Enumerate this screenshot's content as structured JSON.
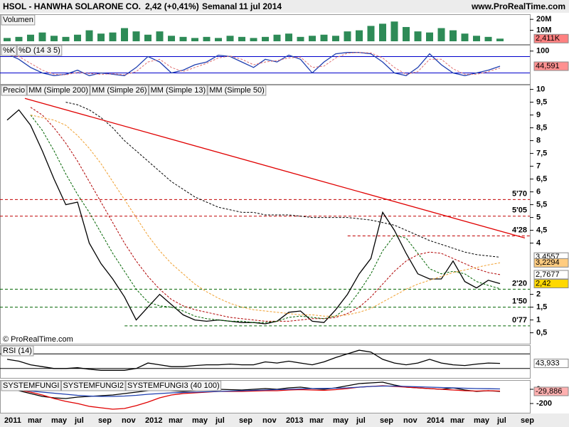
{
  "header": {
    "symbol": "HSOL - HANWHA SOLARONE CO.",
    "quote": "2,42 (+0,41%)",
    "period": "Semanal",
    "date": "11 jul 2014",
    "site": "www.ProRealTime.com"
  },
  "chart_data": [
    {
      "type": "bar",
      "title": "Volumen",
      "color": "#2e8b57",
      "ylim": [
        0,
        24000000
      ],
      "yticks": [
        {
          "value": 20000000,
          "label": "20M"
        },
        {
          "value": 10000000,
          "label": "10M"
        }
      ],
      "values": [
        3000000,
        4000000,
        6000000,
        8000000,
        5000000,
        4000000,
        6000000,
        10000000,
        7000000,
        8000000,
        12000000,
        9000000,
        6000000,
        9000000,
        5000000,
        4000000,
        3000000,
        4000000,
        3000000,
        5000000,
        4000000,
        3000000,
        4000000,
        6000000,
        7000000,
        4000000,
        5000000,
        6000000,
        5000000,
        9000000,
        10000000,
        14000000,
        16000000,
        18000000,
        13000000,
        9000000,
        8000000,
        12000000,
        10000000,
        7000000,
        5000000,
        4000000,
        2411000,
        null,
        null
      ],
      "markers": [
        {
          "value": 2411000,
          "label": "2,411K",
          "color": "#ff8080"
        }
      ]
    },
    {
      "type": "line",
      "ylim": [
        -10,
        115
      ],
      "yticks": [
        100
      ],
      "levels": [
        80,
        20
      ],
      "level_color": "#0000cc",
      "series": [
        {
          "name": "%K",
          "color": "#1f3fb0",
          "values": [
            90,
            70,
            40,
            20,
            10,
            15,
            30,
            10,
            20,
            15,
            10,
            40,
            80,
            60,
            20,
            30,
            50,
            60,
            85,
            80,
            60,
            40,
            70,
            60,
            85,
            70,
            20,
            60,
            90,
            95,
            95,
            90,
            60,
            20,
            10,
            40,
            90,
            50,
            20,
            10,
            20,
            30,
            44.591,
            null,
            null
          ]
        },
        {
          "name": "%D (14 3 5)",
          "color": "#e07070",
          "dashed": true,
          "values": [
            85,
            80,
            55,
            30,
            15,
            13,
            22,
            18,
            15,
            17,
            13,
            25,
            60,
            70,
            40,
            25,
            40,
            55,
            75,
            82,
            70,
            50,
            60,
            65,
            75,
            78,
            40,
            45,
            75,
            92,
            95,
            93,
            75,
            40,
            15,
            25,
            70,
            70,
            35,
            15,
            15,
            25,
            38,
            null,
            null
          ]
        }
      ],
      "markers": [
        {
          "value": 44.591,
          "label": "44,591",
          "color": "#ff9090"
        }
      ]
    },
    {
      "type": "line",
      "ylim": [
        0.1,
        10.1
      ],
      "credit": "© ProRealTime.com",
      "yticks": [
        10,
        {
          "value": 9.5,
          "label": "9,5"
        },
        9,
        {
          "value": 8.5,
          "label": "8,5"
        },
        8,
        {
          "value": 7.5,
          "label": "7,5"
        },
        7,
        {
          "value": 6.5,
          "label": "6,5"
        },
        6,
        {
          "value": 5.5,
          "label": "5,5"
        },
        5,
        {
          "value": 4.5,
          "label": "4,5"
        },
        4,
        2,
        {
          "value": 1.5,
          "label": "1,5"
        },
        1,
        {
          "value": 0.5,
          "label": "0,5"
        }
      ],
      "series": [
        {
          "name": "Precio",
          "color": "#000000",
          "values": [
            8.8,
            9.2,
            8.6,
            7.6,
            6.5,
            5.5,
            5.6,
            4.0,
            3.2,
            2.6,
            1.9,
            1.0,
            1.5,
            2.0,
            1.6,
            1.2,
            1.0,
            0.95,
            1.0,
            0.95,
            0.9,
            0.9,
            0.85,
            0.95,
            1.3,
            1.35,
            0.95,
            0.9,
            1.4,
            2.0,
            2.8,
            3.4,
            5.2,
            4.5,
            3.6,
            2.8,
            2.6,
            2.6,
            3.3,
            2.5,
            2.25,
            2.55,
            2.42,
            null,
            null
          ]
        },
        {
          "name": "MM (Simple 200)",
          "color": "#000000",
          "dashed": true,
          "values": [
            null,
            null,
            null,
            null,
            null,
            9.5,
            9.4,
            9.2,
            8.9,
            8.5,
            8.0,
            7.6,
            7.2,
            6.8,
            6.4,
            6.1,
            5.8,
            5.6,
            5.4,
            5.3,
            5.2,
            5.2,
            5.1,
            5.1,
            5.1,
            5.05,
            5.0,
            5.0,
            5.0,
            5.0,
            4.95,
            4.9,
            4.8,
            4.7,
            4.5,
            4.3,
            4.1,
            3.95,
            3.8,
            3.65,
            3.55,
            3.5,
            3.45,
            null,
            null
          ]
        },
        {
          "name": "MM (Simple 26)",
          "color": "#b00000",
          "dashed": true,
          "values": [
            null,
            null,
            9.3,
            9.0,
            8.5,
            7.9,
            7.2,
            6.4,
            5.6,
            4.8,
            4.0,
            3.3,
            2.7,
            2.2,
            1.8,
            1.55,
            1.4,
            1.3,
            1.2,
            1.1,
            1.05,
            1.0,
            0.95,
            0.95,
            0.95,
            1.0,
            1.05,
            1.05,
            1.1,
            1.25,
            1.5,
            1.9,
            2.4,
            2.9,
            3.3,
            3.55,
            3.65,
            3.6,
            3.4,
            3.2,
            3.0,
            2.85,
            2.77,
            null,
            null
          ]
        },
        {
          "name": "MM (Simple 13)",
          "color": "#006400",
          "dashed": true,
          "values": [
            null,
            null,
            9.0,
            8.4,
            7.6,
            6.7,
            5.9,
            5.2,
            4.4,
            3.6,
            2.9,
            2.2,
            1.7,
            1.55,
            1.5,
            1.35,
            1.15,
            1.05,
            1.0,
            0.95,
            0.95,
            0.9,
            0.9,
            0.95,
            1.1,
            1.15,
            1.1,
            1.05,
            1.15,
            1.5,
            2.1,
            2.8,
            3.7,
            4.3,
            4.2,
            3.6,
            3.0,
            2.8,
            2.9,
            2.8,
            2.5,
            2.35,
            2.22,
            null,
            null
          ]
        },
        {
          "name": "MM (Simple 50)",
          "color": "#f0a030",
          "dashed": true,
          "values": [
            null,
            null,
            9.0,
            8.9,
            8.8,
            8.6,
            8.2,
            7.7,
            7.1,
            6.4,
            5.7,
            5.0,
            4.3,
            3.7,
            3.2,
            2.8,
            2.4,
            2.1,
            1.85,
            1.65,
            1.5,
            1.4,
            1.35,
            1.3,
            1.25,
            1.2,
            1.2,
            1.15,
            1.15,
            1.2,
            1.3,
            1.45,
            1.7,
            1.95,
            2.2,
            2.4,
            2.55,
            2.7,
            2.85,
            2.95,
            3.05,
            3.15,
            3.23,
            null,
            null
          ]
        }
      ],
      "trendline": {
        "color": "#e00000",
        "x": [
          2,
          44.6
        ],
        "values": [
          9.65,
          4.2
        ]
      },
      "levels": [
        {
          "value": 5.7,
          "label": "5'70",
          "color": "#c00000"
        },
        {
          "value": 5.05,
          "label": "5'05",
          "color": "#c00000"
        },
        {
          "value": 4.28,
          "label": "4'28",
          "color": "#c00000",
          "x0": 29.5
        },
        {
          "value": 2.2,
          "label": "2'20",
          "color": "#006400"
        },
        {
          "value": 1.5,
          "label": "1'50",
          "color": "#006400"
        },
        {
          "value": 0.77,
          "label": "0'77",
          "color": "#006400",
          "x0": 10.5
        }
      ],
      "markers": [
        {
          "value": 3.4557,
          "label": "3,4557",
          "color": "#ffffff"
        },
        {
          "value": 3.2294,
          "label": "3,2294",
          "color": "#ffcc80"
        },
        {
          "value": 2.7677,
          "label": "2,7677",
          "color": "#ffffff"
        },
        {
          "value": 2.42,
          "label": "2,42",
          "color": "#ffd800"
        }
      ]
    },
    {
      "type": "line",
      "title": "RSI (14)",
      "ylim": [
        10,
        90
      ],
      "yticks": [],
      "levels": [
        70,
        30
      ],
      "level_color": "#000000",
      "series": [
        {
          "name": "RSI",
          "color": "#000000",
          "values": [
            55,
            50,
            40,
            35,
            30,
            30,
            32,
            28,
            25,
            25,
            25,
            30,
            45,
            40,
            35,
            35,
            38,
            40,
            40,
            42,
            40,
            40,
            48,
            45,
            50,
            45,
            40,
            48,
            60,
            70,
            80,
            75,
            55,
            45,
            40,
            45,
            55,
            45,
            40,
            38,
            42,
            45,
            43.933,
            null,
            null
          ]
        }
      ],
      "markers": [
        {
          "value": 43.933,
          "label": "43,933",
          "color": "#ffffff"
        }
      ]
    },
    {
      "type": "line",
      "ylim": [
        -310,
        100
      ],
      "yticks": [
        0,
        -200
      ],
      "series": [
        {
          "name": "SYSTEMFUNGI",
          "color": "#000000",
          "values": [
            0,
            -20,
            -60,
            -100,
            -120,
            -130,
            -110,
            -100,
            -90,
            -80,
            -60,
            -40,
            -20,
            -10,
            -20,
            -30,
            -20,
            -10,
            0,
            -5,
            -10,
            0,
            10,
            0,
            20,
            30,
            10,
            0,
            20,
            50,
            80,
            90,
            100,
            60,
            30,
            20,
            10,
            0,
            20,
            -10,
            -30,
            -20,
            -29.886,
            null,
            null
          ]
        },
        {
          "name": "SYSTEMFUNGI2",
          "color": "#e00000",
          "values": [
            0,
            -10,
            -40,
            -80,
            -130,
            -170,
            -200,
            -240,
            -260,
            -280,
            -270,
            -230,
            -180,
            -120,
            -80,
            -60,
            -50,
            -40,
            -30,
            -30,
            -30,
            -25,
            -20,
            -20,
            -10,
            -5,
            -10,
            -15,
            -5,
            10,
            30,
            40,
            50,
            40,
            30,
            20,
            10,
            0,
            -10,
            -20,
            -25,
            -20,
            -25,
            null,
            null
          ]
        },
        {
          "name": "SYSTEMFUNGI3 (40 100)",
          "color": "#1f3fb0",
          "values": [
            0,
            -10,
            -25,
            -40,
            -55,
            -70,
            -85,
            -95,
            -100,
            -100,
            -95,
            -85,
            -70,
            -60,
            -50,
            -45,
            -40,
            -35,
            -30,
            -25,
            -20,
            -15,
            -10,
            -5,
            0,
            5,
            10,
            12,
            15,
            20,
            30,
            40,
            45,
            45,
            40,
            35,
            30,
            25,
            20,
            15,
            10,
            8,
            5,
            null,
            null
          ]
        }
      ],
      "markers": [
        {
          "value": -29.886,
          "label": "-29,886",
          "color": "#ffb0b0"
        }
      ],
      "categories": [
        "2011",
        null,
        "mar",
        null,
        "may",
        null,
        "jul",
        null,
        "sep",
        null,
        "nov",
        null,
        "2012",
        null,
        "mar",
        null,
        "may",
        null,
        "jul",
        null,
        "sep",
        null,
        "nov",
        null,
        "2013",
        null,
        "mar",
        null,
        "may",
        null,
        "jul",
        null,
        "sep",
        null,
        "nov",
        null,
        "2014",
        null,
        "mar",
        null,
        "may",
        null,
        "jul",
        null,
        "sep"
      ]
    }
  ]
}
